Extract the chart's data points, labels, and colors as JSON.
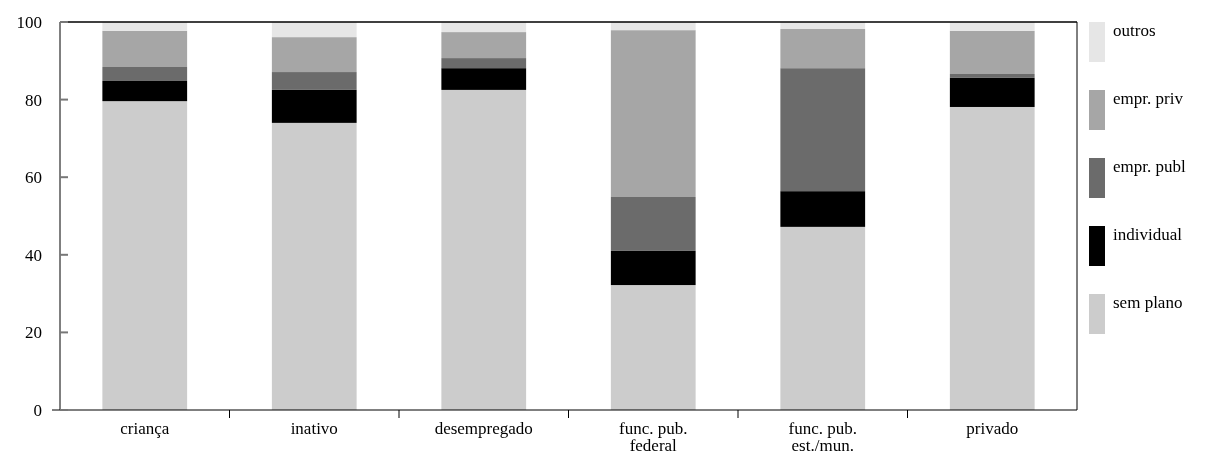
{
  "chart_data": {
    "type": "bar",
    "stacked": true,
    "categories": [
      "criança",
      "inativo",
      "desempregado",
      "func. pub.\nfederal",
      "func. pub.\nest./mun.",
      "privado"
    ],
    "series": [
      {
        "name": "sem plano",
        "color": "#cccccc",
        "values": [
          79.6,
          74.0,
          82.5,
          32.2,
          47.2,
          78.1
        ]
      },
      {
        "name": "individual",
        "color": "#000000",
        "values": [
          5.2,
          8.5,
          5.6,
          8.8,
          9.2,
          7.5
        ]
      },
      {
        "name": "empr. publ",
        "color": "#6b6b6b",
        "values": [
          3.6,
          4.6,
          2.6,
          13.9,
          31.7,
          1.0
        ]
      },
      {
        "name": "empr. priv",
        "color": "#a6a6a6",
        "values": [
          9.3,
          9.0,
          6.7,
          43.0,
          10.1,
          11.1
        ]
      },
      {
        "name": "outros",
        "color": "#e6e6e6",
        "values": [
          2.3,
          3.9,
          2.6,
          2.1,
          1.8,
          2.3
        ]
      }
    ],
    "ylim": [
      0,
      100
    ],
    "yticks": [
      0,
      20,
      40,
      60,
      80,
      100
    ],
    "grid": false,
    "legend": "right"
  }
}
